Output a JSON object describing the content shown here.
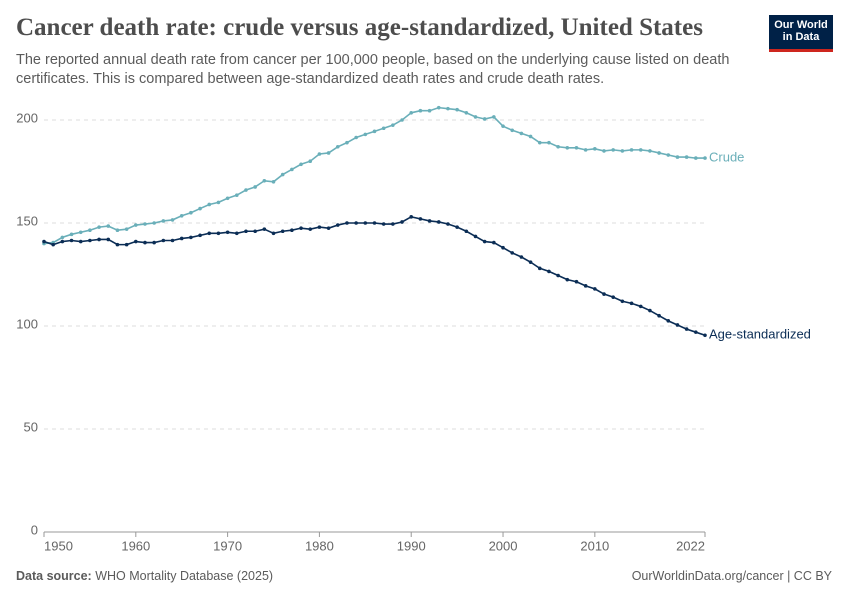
{
  "chart_data": {
    "type": "line",
    "title": "Cancer death rate: crude versus age-standardized, United States",
    "subtitle": "The reported annual death rate from cancer per 100,000 people, based on the underlying cause listed on death certificates. This is compared between age-standardized death rates and crude death rates.",
    "logo": "Our World in Data",
    "source_label": "Data source:",
    "source": "WHO Mortality Database (2025)",
    "credit": "OurWorldinData.org/cancer | CC BY",
    "x": [
      1950,
      1951,
      1952,
      1953,
      1954,
      1955,
      1956,
      1957,
      1958,
      1959,
      1960,
      1961,
      1962,
      1963,
      1964,
      1965,
      1966,
      1967,
      1968,
      1969,
      1970,
      1971,
      1972,
      1973,
      1974,
      1975,
      1976,
      1977,
      1978,
      1979,
      1980,
      1981,
      1982,
      1983,
      1984,
      1985,
      1986,
      1987,
      1988,
      1989,
      1990,
      1991,
      1992,
      1993,
      1994,
      1995,
      1996,
      1997,
      1998,
      1999,
      2000,
      2001,
      2002,
      2003,
      2004,
      2005,
      2006,
      2007,
      2008,
      2009,
      2010,
      2011,
      2012,
      2013,
      2014,
      2015,
      2016,
      2017,
      2018,
      2019,
      2020,
      2021,
      2022
    ],
    "series": [
      {
        "name": "Crude",
        "color": "#6aafb9",
        "values": [
          140,
          140.5,
          143,
          144.5,
          145.5,
          146.5,
          148,
          148.5,
          146.5,
          147,
          149,
          149.5,
          150,
          151,
          151.5,
          153.5,
          155,
          157,
          159,
          160,
          162,
          163.5,
          166,
          167.5,
          170.5,
          170,
          173.5,
          176,
          178.5,
          180,
          183.5,
          184,
          187,
          189,
          191.5,
          193,
          194.5,
          196,
          197.5,
          200,
          203.5,
          204.5,
          204.5,
          206,
          205.5,
          205,
          203.5,
          201.5,
          200.5,
          201.5,
          197,
          195,
          193.5,
          192,
          189,
          189,
          187,
          186.5,
          186.5,
          185.5,
          186,
          185,
          185.5,
          185,
          185.5,
          185.5,
          185,
          184,
          183,
          182,
          182,
          181.5,
          181.5
        ]
      },
      {
        "name": "Age-standardized",
        "color": "#0b2d55",
        "values": [
          141,
          139.5,
          141,
          141.5,
          141,
          141.5,
          142,
          142,
          139.5,
          139.5,
          141,
          140.5,
          140.5,
          141.5,
          141.5,
          142.5,
          143,
          144,
          145,
          145,
          145.5,
          145,
          146,
          146,
          147,
          145,
          146,
          146.5,
          147.5,
          147,
          148,
          147.5,
          149,
          150,
          150,
          150,
          150,
          149.5,
          149.5,
          150.5,
          153,
          152,
          151,
          150.5,
          149.5,
          148,
          146,
          143.5,
          141,
          140.5,
          138,
          135.5,
          133.5,
          131,
          128,
          126.5,
          124.5,
          122.5,
          121.5,
          119.5,
          118,
          115.5,
          114,
          112,
          111,
          109.5,
          107.5,
          105,
          102.5,
          100.5,
          98.5,
          97,
          95.5
        ]
      }
    ],
    "xlim": [
      1950,
      2022
    ],
    "xticks": [
      1950,
      1960,
      1970,
      1980,
      1990,
      2000,
      2010,
      2022
    ],
    "ylim": [
      0,
      210
    ],
    "yticks": [
      0,
      50,
      100,
      150,
      200
    ],
    "grid": true
  }
}
